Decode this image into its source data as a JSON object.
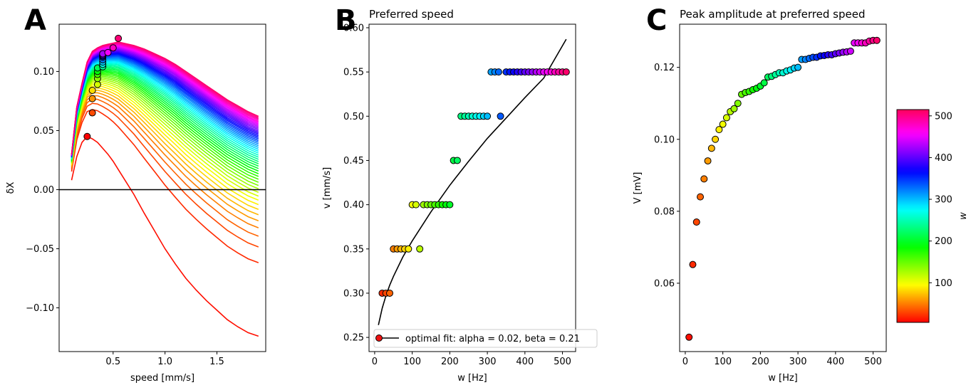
{
  "colors": {
    "axis": "#000000",
    "zero_line": "#000000",
    "fit_line": "#000000",
    "colormap": "hsv",
    "marker_edge": "#000000"
  },
  "colormap_stops": [
    "#ff0000",
    "#ffff00",
    "#00ff00",
    "#00ffff",
    "#0000ff",
    "#ff00ff",
    "#ff0000"
  ],
  "chart_data": [
    {
      "id": "A",
      "panel_letter": "A",
      "type": "line",
      "title": "",
      "xlabel": "speed [mm/s]",
      "ylabel": "δX",
      "xlim": [
        -0.02,
        1.97
      ],
      "ylim": [
        -0.137,
        0.14
      ],
      "xticks": [
        0.5,
        1.0,
        1.5
      ],
      "xtick_labels": [
        "0.5",
        "1.0",
        "1.5"
      ],
      "yticks": [
        -0.1,
        -0.05,
        0.0,
        0.05,
        0.1
      ],
      "ytick_labels": [
        "−0.10",
        "−0.05",
        "0.00",
        "0.05",
        "0.10"
      ],
      "x": [
        0.1,
        0.15,
        0.2,
        0.25,
        0.3,
        0.35,
        0.4,
        0.45,
        0.5,
        0.55,
        0.6,
        0.7,
        0.8,
        0.9,
        1.0,
        1.1,
        1.2,
        1.3,
        1.4,
        1.5,
        1.6,
        1.7,
        1.8,
        1.9
      ],
      "w_values": [
        10,
        20,
        30,
        40,
        50,
        60,
        70,
        80,
        90,
        100,
        110,
        120,
        130,
        140,
        150,
        160,
        170,
        180,
        190,
        200,
        210,
        220,
        230,
        240,
        250,
        260,
        270,
        280,
        290,
        300,
        310,
        320,
        330,
        340,
        350,
        360,
        370,
        380,
        390,
        400,
        410,
        420,
        430,
        440,
        450,
        460,
        470,
        480,
        490,
        500,
        510
      ],
      "highlighted_series": [
        {
          "name": "w = 10",
          "w": 10,
          "values": [
            0.008,
            0.028,
            0.04,
            0.045,
            0.043,
            0.04,
            0.035,
            0.03,
            0.024,
            0.017,
            0.01,
            -0.004,
            -0.02,
            -0.035,
            -0.05,
            -0.063,
            -0.075,
            -0.085,
            -0.094,
            -0.102,
            -0.11,
            -0.116,
            -0.121,
            -0.124
          ]
        },
        {
          "name": "w = 510",
          "w": 510,
          "values": [
            0.03,
            0.07,
            0.09,
            0.108,
            0.117,
            0.12,
            0.122,
            0.123,
            0.124,
            0.125,
            0.124,
            0.122,
            0.119,
            0.115,
            0.111,
            0.106,
            0.1,
            0.094,
            0.088,
            0.082,
            0.076,
            0.071,
            0.066,
            0.062
          ]
        }
      ],
      "peak_markers": {
        "description": "preferred speed marker per curve",
        "speed": [
          0.25,
          0.3,
          0.3,
          0.3,
          0.35,
          0.35,
          0.35,
          0.35,
          0.35,
          0.4,
          0.4,
          0.4,
          0.4,
          0.4,
          0.4,
          0.4,
          0.4,
          0.45,
          0.5,
          0.55
        ],
        "dX": [
          0.045,
          0.065,
          0.077,
          0.084,
          0.089,
          0.094,
          0.0975,
          0.1,
          0.103,
          0.104,
          0.106,
          0.108,
          0.11,
          0.112,
          0.113,
          0.114,
          0.115,
          0.116,
          0.12,
          0.128
        ]
      },
      "zero_line": true
    },
    {
      "id": "B",
      "panel_letter": "B",
      "type": "scatter",
      "title": "Preferred speed",
      "xlabel": "w [Hz]",
      "ylabel": "v [mm/s]",
      "xlim": [
        -15,
        535
      ],
      "ylim": [
        0.234,
        0.604
      ],
      "xticks": [
        0,
        100,
        200,
        300,
        400,
        500
      ],
      "xtick_labels": [
        "0",
        "100",
        "200",
        "300",
        "400",
        "500"
      ],
      "yticks": [
        0.25,
        0.3,
        0.35,
        0.4,
        0.45,
        0.5,
        0.55,
        0.6
      ],
      "ytick_labels": [
        "0.25",
        "0.30",
        "0.35",
        "0.40",
        "0.45",
        "0.50",
        "0.55",
        "0.60"
      ],
      "points": {
        "w": [
          20,
          30,
          40,
          50,
          60,
          70,
          80,
          90,
          120,
          100,
          110,
          130,
          140,
          150,
          160,
          170,
          180,
          190,
          200,
          210,
          220,
          230,
          240,
          250,
          260,
          270,
          280,
          290,
          300,
          335,
          310,
          320,
          330,
          350,
          360,
          370,
          380,
          390,
          400,
          410,
          420,
          430,
          440,
          450,
          460,
          470,
          480,
          490,
          500,
          510
        ],
        "v": [
          0.3,
          0.3,
          0.3,
          0.35,
          0.35,
          0.35,
          0.35,
          0.35,
          0.35,
          0.4,
          0.4,
          0.4,
          0.4,
          0.4,
          0.4,
          0.4,
          0.4,
          0.4,
          0.4,
          0.45,
          0.45,
          0.5,
          0.5,
          0.5,
          0.5,
          0.5,
          0.5,
          0.5,
          0.5,
          0.5,
          0.55,
          0.55,
          0.55,
          0.55,
          0.55,
          0.55,
          0.55,
          0.55,
          0.55,
          0.55,
          0.55,
          0.55,
          0.55,
          0.55,
          0.55,
          0.55,
          0.55,
          0.55,
          0.55,
          0.55
        ]
      },
      "fit": {
        "alpha": 0.02,
        "beta": 0.21,
        "w": [
          10,
          20,
          30,
          40,
          50,
          75,
          100,
          150,
          200,
          250,
          300,
          350,
          400,
          450,
          510
        ],
        "v": [
          0.264,
          0.283,
          0.297,
          0.309,
          0.319,
          0.341,
          0.359,
          0.392,
          0.422,
          0.449,
          0.475,
          0.498,
          0.521,
          0.543,
          0.587
        ]
      },
      "legend": {
        "label": "optimal fit: alpha = 0.02, beta = 0.21",
        "placement": "lower-right"
      }
    },
    {
      "id": "C",
      "panel_letter": "C",
      "type": "scatter",
      "title": "Peak amplitude at preferred speed",
      "xlabel": "w [Hz]",
      "ylabel": "V [mV]",
      "xlim": [
        -15,
        535
      ],
      "ylim": [
        0.041,
        0.132
      ],
      "xticks": [
        0,
        100,
        200,
        300,
        400,
        500
      ],
      "xtick_labels": [
        "0",
        "100",
        "200",
        "300",
        "400",
        "500"
      ],
      "yticks": [
        0.06,
        0.08,
        0.1,
        0.12
      ],
      "ytick_labels": [
        "0.06",
        "0.08",
        "0.10",
        "0.12"
      ],
      "points": {
        "w": [
          10,
          20,
          30,
          40,
          50,
          60,
          70,
          80,
          90,
          100,
          110,
          120,
          130,
          140,
          150,
          160,
          170,
          180,
          190,
          200,
          210,
          220,
          230,
          240,
          250,
          260,
          270,
          280,
          290,
          300,
          310,
          320,
          330,
          340,
          350,
          360,
          370,
          380,
          390,
          400,
          410,
          420,
          430,
          440,
          450,
          460,
          470,
          480,
          490,
          500,
          510
        ],
        "V": [
          0.045,
          0.0652,
          0.077,
          0.084,
          0.089,
          0.094,
          0.0975,
          0.1,
          0.1027,
          0.1042,
          0.106,
          0.1077,
          0.1085,
          0.11,
          0.1125,
          0.113,
          0.1133,
          0.1138,
          0.1142,
          0.1148,
          0.1157,
          0.1173,
          0.1175,
          0.118,
          0.1185,
          0.1185,
          0.119,
          0.1193,
          0.1198,
          0.12,
          0.1222,
          0.1222,
          0.1225,
          0.1228,
          0.1228,
          0.1232,
          0.1233,
          0.1235,
          0.1235,
          0.1238,
          0.124,
          0.1242,
          0.1243,
          0.1245,
          0.1268,
          0.1268,
          0.1268,
          0.1268,
          0.1273,
          0.1275,
          0.1275
        ]
      },
      "colorbar": {
        "label": "w",
        "range": [
          5,
          515
        ],
        "ticks": [
          100,
          200,
          300,
          400,
          500
        ],
        "tick_labels": [
          "100",
          "200",
          "300",
          "400",
          "500"
        ]
      }
    }
  ]
}
